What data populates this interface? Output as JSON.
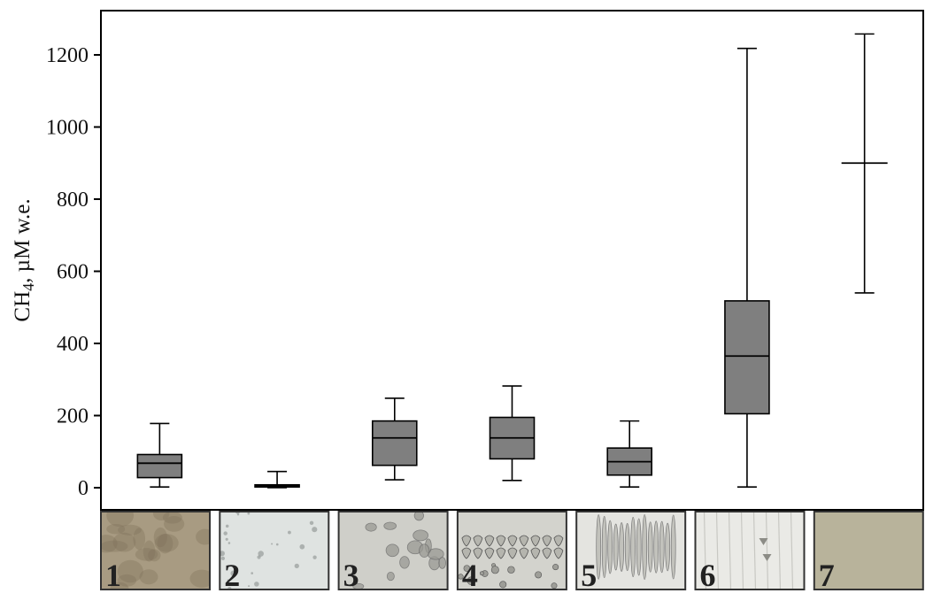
{
  "chart_data": {
    "type": "boxplot",
    "ylabel": "CH4, µM w.e.",
    "ylabel_main": "CH",
    "ylabel_sub": "4",
    "ylabel_rest": ", µM w.e.",
    "ylim": [
      -60,
      1390
    ],
    "yticks": [
      0,
      200,
      400,
      600,
      800,
      1000,
      1200
    ],
    "grid": false,
    "categories": [
      "1",
      "2",
      "3",
      "4",
      "5",
      "6",
      "7"
    ],
    "boxes": [
      {
        "label": "1",
        "whisker_low": 2,
        "q1": 28,
        "median": 68,
        "q3": 92,
        "whisker_high": 178
      },
      {
        "label": "2",
        "whisker_low": 0,
        "q1": 2,
        "median": 5,
        "q3": 8,
        "whisker_high": 45
      },
      {
        "label": "3",
        "whisker_low": 22,
        "q1": 62,
        "median": 138,
        "q3": 185,
        "whisker_high": 248
      },
      {
        "label": "4",
        "whisker_low": 20,
        "q1": 80,
        "median": 138,
        "q3": 195,
        "whisker_high": 282
      },
      {
        "label": "5",
        "whisker_low": 2,
        "q1": 35,
        "median": 72,
        "q3": 110,
        "whisker_high": 185
      },
      {
        "label": "6",
        "whisker_low": 2,
        "q1": 205,
        "median": 365,
        "q3": 518,
        "whisker_high": 1218
      },
      {
        "label": "7",
        "whisker_low": 540,
        "q1": null,
        "median": 900,
        "q3": null,
        "whisker_high": 1258
      }
    ],
    "box_color": "#7f7f7f",
    "thumbnails": [
      {
        "label": "1",
        "color": "#a89b82",
        "texture": "mottled"
      },
      {
        "label": "2",
        "color": "#dfe3e1",
        "texture": "specks"
      },
      {
        "label": "3",
        "color": "#cfcfc9",
        "texture": "bubbles"
      },
      {
        "label": "4",
        "color": "#d3d3cd",
        "texture": "droplets"
      },
      {
        "label": "5",
        "color": "#e4e4e0",
        "texture": "streaks"
      },
      {
        "label": "6",
        "color": "#eaeae6",
        "texture": "sparse"
      },
      {
        "label": "7",
        "color": "#b8b39b",
        "texture": "plain"
      }
    ]
  }
}
